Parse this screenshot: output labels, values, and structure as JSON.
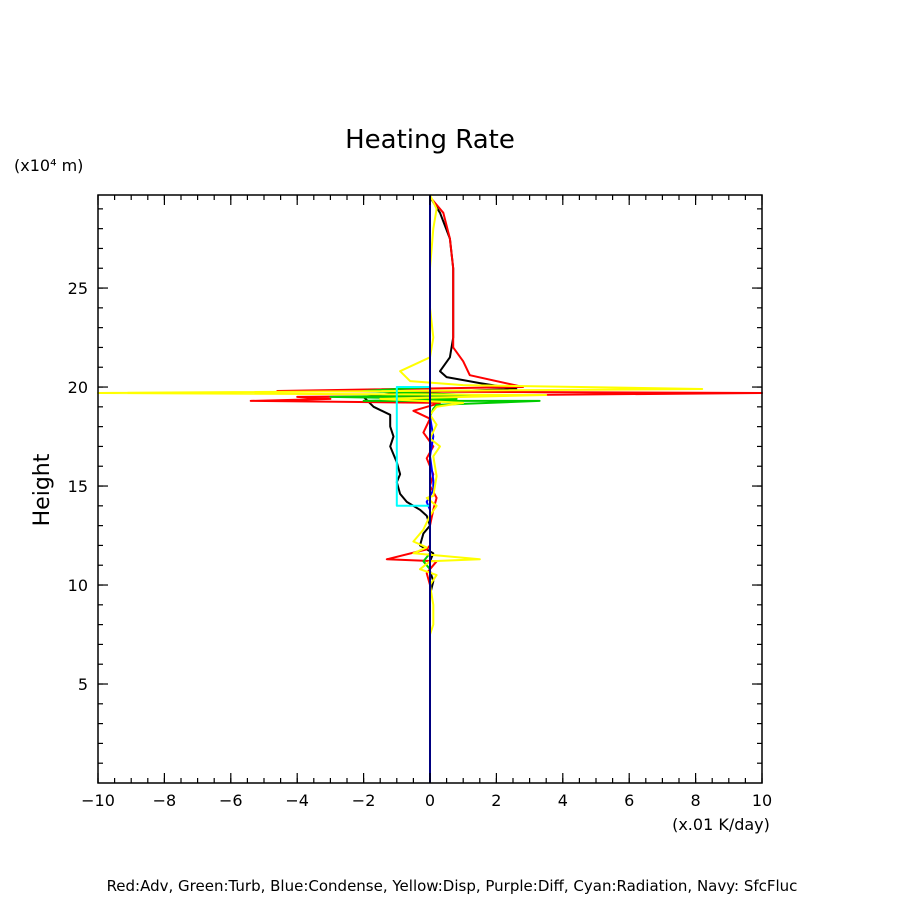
{
  "chart_data": {
    "type": "line",
    "title": "Heating Rate",
    "ylabel": "Height",
    "y_unit_label": "(x10⁴ m)",
    "x_unit_label": "(x.01 K/day)",
    "footer": "Red:Adv, Green:Turb, Blue:Condense, Yellow:Disp, Purple:Diff, Cyan:Radiation, Navy: SfcFluc",
    "xlim": [
      -10,
      10
    ],
    "ylim": [
      0,
      29.7
    ],
    "xticks": [
      -10,
      -8,
      -6,
      -4,
      -2,
      0,
      2,
      4,
      6,
      8,
      10
    ],
    "xtick_labels": [
      "−10",
      "−8",
      "−6",
      "−4",
      "−2",
      "0",
      "2",
      "4",
      "6",
      "8",
      "10"
    ],
    "yticks": [
      5,
      10,
      15,
      20,
      25
    ],
    "ytick_labels": [
      "5",
      "10",
      "15",
      "20",
      "25"
    ],
    "grid": false,
    "series": [
      {
        "color": "#000000",
        "points": [
          [
            0,
            29.6
          ],
          [
            0.3,
            28.8
          ],
          [
            0.6,
            27.5
          ],
          [
            0.7,
            26
          ],
          [
            0.7,
            24
          ],
          [
            0.7,
            22.5
          ],
          [
            0.6,
            21.5
          ],
          [
            0.3,
            20.8
          ],
          [
            0.5,
            20.5
          ],
          [
            1.5,
            20.2
          ],
          [
            2.6,
            19.9
          ],
          [
            -1,
            19.7
          ],
          [
            -2,
            19.5
          ],
          [
            -1.7,
            19
          ],
          [
            -1.2,
            18.6
          ],
          [
            -1.2,
            18
          ],
          [
            -1.1,
            17.5
          ],
          [
            -1.2,
            17
          ],
          [
            -1.1,
            16.6
          ],
          [
            -1,
            16.2
          ],
          [
            -0.9,
            15.6
          ],
          [
            -1,
            15.2
          ],
          [
            -0.9,
            14.6
          ],
          [
            -0.7,
            14.2
          ],
          [
            -0.3,
            13.8
          ],
          [
            -0.1,
            13.5
          ],
          [
            0,
            13
          ],
          [
            -0.2,
            12.6
          ],
          [
            -0.3,
            12
          ],
          [
            0.1,
            11.6
          ],
          [
            0,
            11.2
          ],
          [
            0,
            10.7
          ],
          [
            0.1,
            10.2
          ],
          [
            0,
            9.5
          ],
          [
            0,
            8.5
          ],
          [
            0,
            8
          ]
        ]
      },
      {
        "color": "#ff0000",
        "points": [
          [
            0,
            29.6
          ],
          [
            0.4,
            28.8
          ],
          [
            0.6,
            27.5
          ],
          [
            0.7,
            26
          ],
          [
            0.7,
            24
          ],
          [
            0.7,
            22
          ],
          [
            1,
            21.3
          ],
          [
            1.2,
            20.6
          ],
          [
            2.8,
            20
          ],
          [
            -4.6,
            19.8
          ],
          [
            10,
            19.7
          ],
          [
            -4,
            19.5
          ],
          [
            -3,
            19.4
          ],
          [
            -5.4,
            19.3
          ],
          [
            0.3,
            19.2
          ],
          [
            -0.5,
            18.8
          ],
          [
            0,
            18.4
          ],
          [
            -0.2,
            17.7
          ],
          [
            0.1,
            17
          ],
          [
            -0.1,
            16.4
          ],
          [
            0.1,
            15.6
          ],
          [
            0,
            15
          ],
          [
            0.2,
            14.4
          ],
          [
            0.1,
            13.8
          ],
          [
            0,
            13
          ],
          [
            0,
            12
          ],
          [
            -0.1,
            11.8
          ],
          [
            -1.3,
            11.3
          ],
          [
            0.2,
            11.2
          ],
          [
            -0.1,
            10.6
          ],
          [
            0,
            10
          ],
          [
            0,
            9
          ],
          [
            0,
            8.8
          ]
        ]
      },
      {
        "color": "#00cc00",
        "points": [
          [
            0,
            20
          ],
          [
            -2,
            19.8
          ],
          [
            1.2,
            19.6
          ],
          [
            -3,
            19.5
          ],
          [
            0.8,
            19.4
          ],
          [
            -2,
            19.3
          ],
          [
            3.3,
            19.3
          ],
          [
            0.2,
            19.1
          ],
          [
            0.1,
            18.9
          ],
          [
            0,
            18.5
          ],
          [
            0,
            11.6
          ],
          [
            -0.2,
            11.2
          ],
          [
            0,
            10.8
          ]
        ]
      },
      {
        "color": "#0000ff",
        "points": [
          [
            0,
            18.5
          ],
          [
            0.1,
            17.5
          ],
          [
            0,
            16.5
          ],
          [
            0.1,
            15.3
          ],
          [
            0.1,
            14.8
          ],
          [
            -0.1,
            14.2
          ],
          [
            0,
            13.8
          ]
        ]
      },
      {
        "color": "#ffff00",
        "points": [
          [
            0,
            29.7
          ],
          [
            0.2,
            29
          ],
          [
            0.1,
            28
          ],
          [
            0,
            26
          ],
          [
            0,
            24
          ],
          [
            0.1,
            22.5
          ],
          [
            0,
            21.5
          ],
          [
            -0.9,
            20.8
          ],
          [
            -0.6,
            20.3
          ],
          [
            1,
            20.1
          ],
          [
            8.2,
            19.9
          ],
          [
            -10,
            19.7
          ],
          [
            3.5,
            19.6
          ],
          [
            -1.5,
            19.4
          ],
          [
            1,
            19.2
          ],
          [
            0.2,
            19
          ],
          [
            0,
            18.6
          ],
          [
            0.2,
            18.1
          ],
          [
            0,
            17.4
          ],
          [
            0.3,
            17
          ],
          [
            0.1,
            16.5
          ],
          [
            0.2,
            15.5
          ],
          [
            0.1,
            14.5
          ],
          [
            -0.1,
            14.4
          ],
          [
            0.2,
            14
          ],
          [
            0,
            13.5
          ],
          [
            -0.2,
            12.8
          ],
          [
            -0.5,
            12.2
          ],
          [
            -0.1,
            11.9
          ],
          [
            -0.5,
            11.6
          ],
          [
            1.5,
            11.3
          ],
          [
            0,
            11.2
          ],
          [
            -0.3,
            10.8
          ],
          [
            0.2,
            10.5
          ],
          [
            0,
            10
          ],
          [
            0.1,
            9
          ],
          [
            0.1,
            8
          ],
          [
            0,
            7.5
          ]
        ]
      },
      {
        "color": "#00ffff",
        "points": [
          [
            0,
            20
          ],
          [
            -1,
            20
          ],
          [
            -1,
            14
          ],
          [
            -0.4,
            14
          ],
          [
            0,
            14
          ]
        ]
      },
      {
        "color": "#000080",
        "points": [
          [
            0,
            0
          ],
          [
            0,
            29.7
          ]
        ]
      }
    ]
  }
}
